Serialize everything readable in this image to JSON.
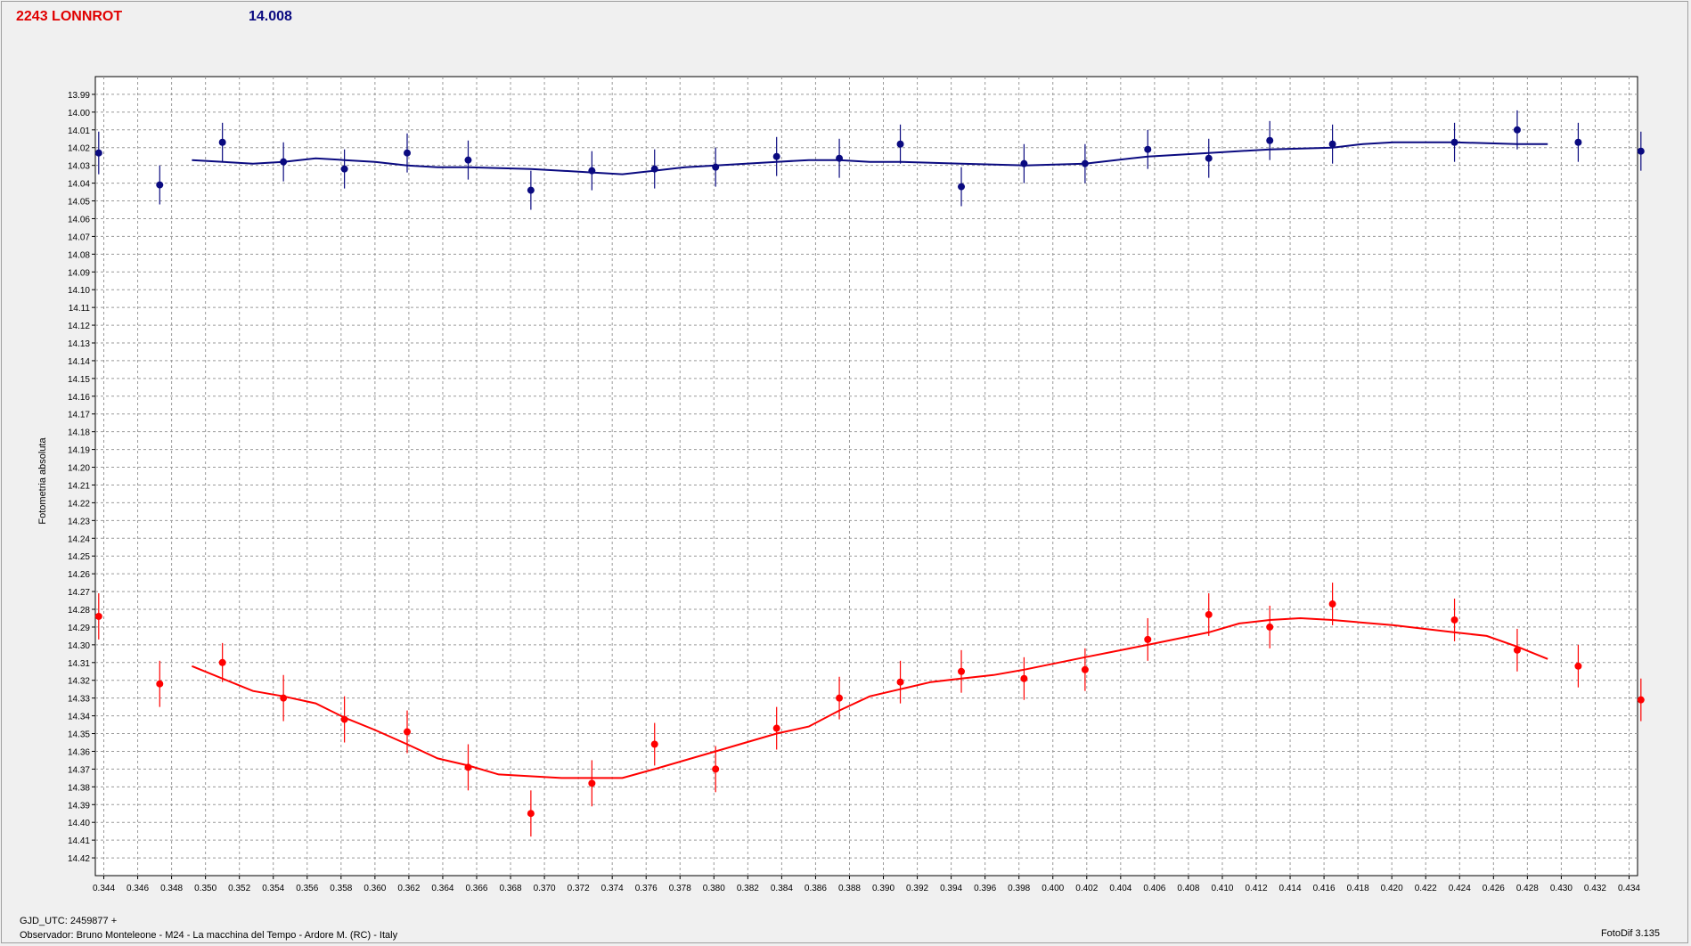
{
  "header": {
    "object_name": "2243 LONNROT",
    "mean_magnitude": "14.008"
  },
  "footer": {
    "gjd_label": "GJD_UTC: 2459877 +",
    "observer": "Observador: Bruno Monteleone - M24 - La macchina del Tempo - Ardore M. (RC) - Italy",
    "software": "FotoDif 3.135"
  },
  "colors": {
    "comparison": "#0a0a80",
    "target": "#ff0000",
    "grid": "#9a9a9a",
    "plot_bg": "#ffffff"
  },
  "chart_data": {
    "type": "scatter",
    "ylabel": "Fotometria absoluta",
    "xlabel": "",
    "xlim": [
      0.3435,
      0.4345
    ],
    "ylim": [
      13.98,
      14.43
    ],
    "y_inverted": true,
    "grid": true,
    "x_ticks": [
      "0.344",
      "0.346",
      "0.348",
      "0.350",
      "0.352",
      "0.354",
      "0.356",
      "0.358",
      "0.360",
      "0.362",
      "0.364",
      "0.366",
      "0.368",
      "0.370",
      "0.372",
      "0.374",
      "0.376",
      "0.378",
      "0.380",
      "0.382",
      "0.384",
      "0.386",
      "0.388",
      "0.390",
      "0.392",
      "0.394",
      "0.396",
      "0.398",
      "0.400",
      "0.402",
      "0.404",
      "0.406",
      "0.408",
      "0.410",
      "0.412",
      "0.414",
      "0.416",
      "0.418",
      "0.420",
      "0.422",
      "0.424",
      "0.426",
      "0.428",
      "0.430",
      "0.432",
      "0.434"
    ],
    "y_ticks": [
      "13.99",
      "14.00",
      "14.01",
      "14.02",
      "14.03",
      "14.04",
      "14.05",
      "14.06",
      "14.07",
      "14.08",
      "14.09",
      "14.10",
      "14.11",
      "14.12",
      "14.13",
      "14.14",
      "14.15",
      "14.16",
      "14.17",
      "14.18",
      "14.19",
      "14.20",
      "14.21",
      "14.22",
      "14.23",
      "14.24",
      "14.25",
      "14.26",
      "14.27",
      "14.28",
      "14.29",
      "14.30",
      "14.31",
      "14.32",
      "14.33",
      "14.34",
      "14.35",
      "14.36",
      "14.37",
      "14.38",
      "14.39",
      "14.40",
      "14.41",
      "14.42"
    ],
    "series": [
      {
        "color": "#0a0a80",
        "points": [
          {
            "x": 0.3437,
            "y": 14.023,
            "err": 0.012
          },
          {
            "x": 0.3473,
            "y": 14.041,
            "err": 0.011
          },
          {
            "x": 0.351,
            "y": 14.017,
            "err": 0.011
          },
          {
            "x": 0.3546,
            "y": 14.028,
            "err": 0.011
          },
          {
            "x": 0.3582,
            "y": 14.032,
            "err": 0.011
          },
          {
            "x": 0.3619,
            "y": 14.023,
            "err": 0.011
          },
          {
            "x": 0.3655,
            "y": 14.027,
            "err": 0.011
          },
          {
            "x": 0.3692,
            "y": 14.044,
            "err": 0.011
          },
          {
            "x": 0.3728,
            "y": 14.033,
            "err": 0.011
          },
          {
            "x": 0.3765,
            "y": 14.032,
            "err": 0.011
          },
          {
            "x": 0.3801,
            "y": 14.031,
            "err": 0.011
          },
          {
            "x": 0.3837,
            "y": 14.025,
            "err": 0.011
          },
          {
            "x": 0.3874,
            "y": 14.026,
            "err": 0.011
          },
          {
            "x": 0.391,
            "y": 14.018,
            "err": 0.011
          },
          {
            "x": 0.3946,
            "y": 14.042,
            "err": 0.011
          },
          {
            "x": 0.3983,
            "y": 14.029,
            "err": 0.011
          },
          {
            "x": 0.4019,
            "y": 14.029,
            "err": 0.011
          },
          {
            "x": 0.4056,
            "y": 14.021,
            "err": 0.011
          },
          {
            "x": 0.4092,
            "y": 14.026,
            "err": 0.011
          },
          {
            "x": 0.4128,
            "y": 14.016,
            "err": 0.011
          },
          {
            "x": 0.4165,
            "y": 14.018,
            "err": 0.011
          },
          {
            "x": 0.4237,
            "y": 14.017,
            "err": 0.011
          },
          {
            "x": 0.4274,
            "y": 14.01,
            "err": 0.011
          },
          {
            "x": 0.431,
            "y": 14.017,
            "err": 0.011
          },
          {
            "x": 0.4347,
            "y": 14.022,
            "err": 0.011
          }
        ],
        "fit": [
          [
            0.3492,
            14.027
          ],
          [
            0.3528,
            14.029
          ],
          [
            0.3546,
            14.028
          ],
          [
            0.3565,
            14.026
          ],
          [
            0.3582,
            14.027
          ],
          [
            0.36,
            14.028
          ],
          [
            0.3619,
            14.03
          ],
          [
            0.3637,
            14.031
          ],
          [
            0.3655,
            14.031
          ],
          [
            0.3692,
            14.032
          ],
          [
            0.3728,
            14.034
          ],
          [
            0.3746,
            14.035
          ],
          [
            0.3765,
            14.033
          ],
          [
            0.3783,
            14.031
          ],
          [
            0.3801,
            14.03
          ],
          [
            0.3837,
            14.028
          ],
          [
            0.3856,
            14.027
          ],
          [
            0.3874,
            14.027
          ],
          [
            0.3892,
            14.028
          ],
          [
            0.391,
            14.028
          ],
          [
            0.3946,
            14.029
          ],
          [
            0.3983,
            14.03
          ],
          [
            0.4019,
            14.029
          ],
          [
            0.4056,
            14.025
          ],
          [
            0.4092,
            14.023
          ],
          [
            0.4128,
            14.021
          ],
          [
            0.4165,
            14.02
          ],
          [
            0.4183,
            14.018
          ],
          [
            0.4201,
            14.017
          ],
          [
            0.4237,
            14.017
          ],
          [
            0.4274,
            14.018
          ],
          [
            0.4292,
            14.018
          ]
        ]
      },
      {
        "color": "#ff0000",
        "points": [
          {
            "x": 0.3437,
            "y": 14.284,
            "err": 0.013
          },
          {
            "x": 0.3473,
            "y": 14.322,
            "err": 0.013
          },
          {
            "x": 0.351,
            "y": 14.31,
            "err": 0.011
          },
          {
            "x": 0.3546,
            "y": 14.33,
            "err": 0.013
          },
          {
            "x": 0.3582,
            "y": 14.342,
            "err": 0.013
          },
          {
            "x": 0.3619,
            "y": 14.349,
            "err": 0.012
          },
          {
            "x": 0.3655,
            "y": 14.369,
            "err": 0.013
          },
          {
            "x": 0.3692,
            "y": 14.395,
            "err": 0.013
          },
          {
            "x": 0.3728,
            "y": 14.378,
            "err": 0.013
          },
          {
            "x": 0.3765,
            "y": 14.356,
            "err": 0.012
          },
          {
            "x": 0.3801,
            "y": 14.37,
            "err": 0.013
          },
          {
            "x": 0.3837,
            "y": 14.347,
            "err": 0.012
          },
          {
            "x": 0.3874,
            "y": 14.33,
            "err": 0.012
          },
          {
            "x": 0.391,
            "y": 14.321,
            "err": 0.012
          },
          {
            "x": 0.3946,
            "y": 14.315,
            "err": 0.012
          },
          {
            "x": 0.3983,
            "y": 14.319,
            "err": 0.012
          },
          {
            "x": 0.4019,
            "y": 14.314,
            "err": 0.012
          },
          {
            "x": 0.4056,
            "y": 14.297,
            "err": 0.012
          },
          {
            "x": 0.4092,
            "y": 14.283,
            "err": 0.012
          },
          {
            "x": 0.4128,
            "y": 14.29,
            "err": 0.012
          },
          {
            "x": 0.4165,
            "y": 14.277,
            "err": 0.012
          },
          {
            "x": 0.4237,
            "y": 14.286,
            "err": 0.012
          },
          {
            "x": 0.4274,
            "y": 14.303,
            "err": 0.012
          },
          {
            "x": 0.431,
            "y": 14.312,
            "err": 0.012
          },
          {
            "x": 0.4347,
            "y": 14.331,
            "err": 0.012
          }
        ],
        "fit": [
          [
            0.3492,
            14.312
          ],
          [
            0.3528,
            14.326
          ],
          [
            0.3546,
            14.329
          ],
          [
            0.3565,
            14.333
          ],
          [
            0.3582,
            14.341
          ],
          [
            0.36,
            14.348
          ],
          [
            0.3619,
            14.356
          ],
          [
            0.3637,
            14.364
          ],
          [
            0.3655,
            14.368
          ],
          [
            0.3673,
            14.373
          ],
          [
            0.371,
            14.375
          ],
          [
            0.3746,
            14.375
          ],
          [
            0.3765,
            14.37
          ],
          [
            0.3801,
            14.36
          ],
          [
            0.3819,
            14.355
          ],
          [
            0.3837,
            14.35
          ],
          [
            0.3856,
            14.346
          ],
          [
            0.3874,
            14.337
          ],
          [
            0.3892,
            14.329
          ],
          [
            0.391,
            14.325
          ],
          [
            0.3928,
            14.321
          ],
          [
            0.3946,
            14.319
          ],
          [
            0.3965,
            14.317
          ],
          [
            0.3983,
            14.314
          ],
          [
            0.4019,
            14.307
          ],
          [
            0.4056,
            14.3
          ],
          [
            0.4092,
            14.293
          ],
          [
            0.411,
            14.288
          ],
          [
            0.4128,
            14.286
          ],
          [
            0.4146,
            14.285
          ],
          [
            0.4165,
            14.286
          ],
          [
            0.4201,
            14.289
          ],
          [
            0.4219,
            14.291
          ],
          [
            0.4237,
            14.293
          ],
          [
            0.4256,
            14.295
          ],
          [
            0.4274,
            14.301
          ],
          [
            0.4292,
            14.308
          ]
        ]
      }
    ]
  }
}
